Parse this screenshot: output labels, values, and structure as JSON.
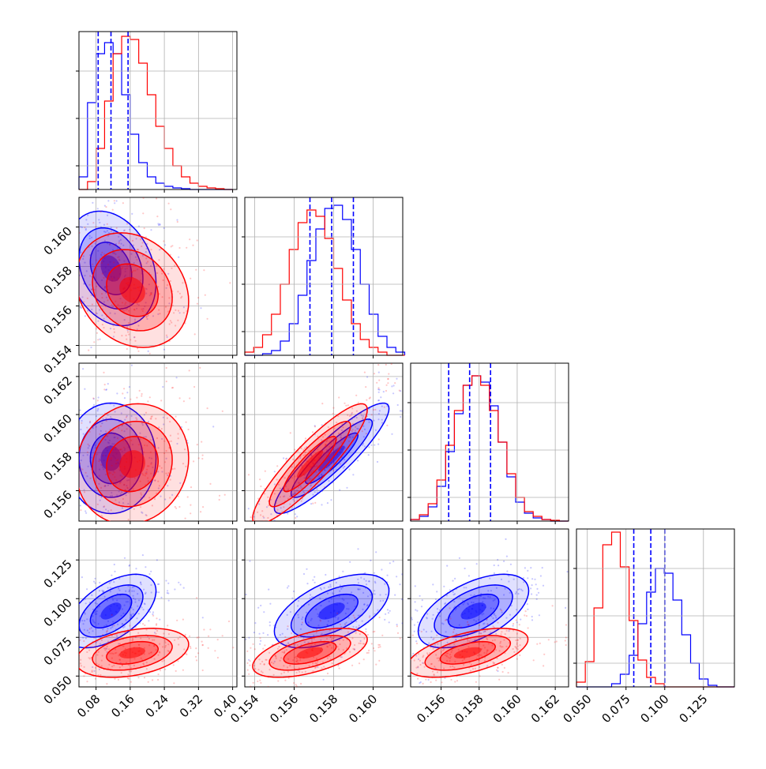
{
  "chart_data": {
    "type": "corner",
    "title": "",
    "parameters": [
      {
        "range": [
          0.04,
          0.41
        ],
        "ticks": [
          "0.08",
          "0.16",
          "0.24",
          "0.32",
          "0.40"
        ],
        "tick_values": [
          0.08,
          0.16,
          0.24,
          0.32,
          0.4
        ]
      },
      {
        "range": [
          0.1535,
          0.1615
        ],
        "ticks": [
          "0.154",
          "0.156",
          "0.158",
          "0.160"
        ],
        "tick_values": [
          0.154,
          0.156,
          0.158,
          0.16
        ]
      },
      {
        "range": [
          0.1544,
          0.1627
        ],
        "ticks": [
          "0.156",
          "0.158",
          "0.160",
          "0.162"
        ],
        "tick_values": [
          0.156,
          0.158,
          0.16,
          0.162
        ]
      },
      {
        "range": [
          0.043,
          0.145
        ],
        "ticks": [
          "0.050",
          "0.075",
          "0.100",
          "0.125"
        ],
        "tick_values": [
          0.05,
          0.075,
          0.1,
          0.125
        ]
      }
    ],
    "series": [
      {
        "color": "#0000ff",
        "means": [
          0.115,
          0.1579,
          0.1577,
          0.092
        ],
        "sds": [
          0.04,
          0.0011,
          0.0011,
          0.009
        ],
        "corr": [
          [
            1,
            -0.25,
            0,
            0.55
          ],
          [
            -0.25,
            1,
            0.9,
            0.55
          ],
          [
            0,
            0.9,
            1,
            0.55
          ],
          [
            0.55,
            0.55,
            0.55,
            1
          ]
        ],
        "quantiles": [
          [
            0.085,
            0.115,
            0.155
          ],
          [
            0.1568,
            0.1579,
            0.159
          ],
          [
            0.1564,
            0.1575,
            0.1586
          ],
          [
            0.08,
            0.091,
            0.1
          ]
        ]
      },
      {
        "color": "#ff0000",
        "means": [
          0.165,
          0.1568,
          0.1574,
          0.065
        ],
        "sds": [
          0.05,
          0.0011,
          0.0012,
          0.006
        ],
        "corr": [
          [
            1,
            -0.2,
            0.1,
            0.35
          ],
          [
            -0.2,
            1,
            0.9,
            0.55
          ],
          [
            0.1,
            0.9,
            1,
            0.55
          ],
          [
            0.35,
            0.55,
            0.55,
            1
          ]
        ]
      }
    ],
    "histograms": [
      {
        "bins": [
          0.04,
          0.06,
          0.08,
          0.1,
          0.12,
          0.14,
          0.16,
          0.18,
          0.2,
          0.22,
          0.24,
          0.26,
          0.28,
          0.3,
          0.32,
          0.34,
          0.36,
          0.38,
          0.4
        ],
        "blue": [
          0.08,
          0.55,
          0.86,
          0.93,
          0.86,
          0.6,
          0.35,
          0.17,
          0.08,
          0.04,
          0.02,
          0.01,
          0.005,
          0,
          0,
          0,
          0,
          0
        ],
        "red": [
          0,
          0.05,
          0.26,
          0.56,
          0.86,
          0.97,
          0.95,
          0.8,
          0.6,
          0.4,
          0.26,
          0.15,
          0.08,
          0.04,
          0.02,
          0.01,
          0.005,
          0
        ]
      },
      {
        "bins": [
          0.1535,
          0.15395,
          0.1544,
          0.15485,
          0.1553,
          0.15575,
          0.1562,
          0.15665,
          0.1571,
          0.15755,
          0.158,
          0.15845,
          0.1589,
          0.15935,
          0.1598,
          0.16025,
          0.1607,
          0.16115,
          0.1616
        ],
        "blue": [
          0,
          0,
          0.01,
          0.03,
          0.09,
          0.2,
          0.38,
          0.6,
          0.8,
          0.93,
          0.95,
          0.86,
          0.67,
          0.45,
          0.26,
          0.12,
          0.05,
          0.02
        ],
        "red": [
          0.02,
          0.05,
          0.13,
          0.26,
          0.45,
          0.67,
          0.84,
          0.92,
          0.88,
          0.74,
          0.55,
          0.35,
          0.2,
          0.1,
          0.05,
          0.02,
          0,
          0
        ]
      },
      {
        "bins": [
          0.1544,
          0.15486,
          0.15532,
          0.15578,
          0.15624,
          0.1567,
          0.15716,
          0.15762,
          0.15808,
          0.15854,
          0.159,
          0.15946,
          0.15992,
          0.16038,
          0.16084,
          0.1613,
          0.16176,
          0.16222,
          0.16268
        ],
        "blue": [
          0.01,
          0.03,
          0.09,
          0.22,
          0.44,
          0.68,
          0.86,
          0.92,
          0.88,
          0.73,
          0.5,
          0.28,
          0.12,
          0.05,
          0.02,
          0.01,
          0,
          0
        ],
        "red": [
          0.01,
          0.04,
          0.11,
          0.26,
          0.48,
          0.7,
          0.86,
          0.92,
          0.86,
          0.7,
          0.5,
          0.3,
          0.15,
          0.06,
          0.03,
          0.01,
          0.005,
          0
        ]
      },
      {
        "bins": [
          0.043,
          0.0487,
          0.0543,
          0.06,
          0.0657,
          0.0713,
          0.077,
          0.0827,
          0.0883,
          0.094,
          0.0997,
          0.1053,
          0.111,
          0.1167,
          0.1223,
          0.128,
          0.1337,
          0.1393,
          0.145
        ],
        "blue": [
          0,
          0,
          0,
          0,
          0.02,
          0.08,
          0.2,
          0.4,
          0.6,
          0.75,
          0.72,
          0.55,
          0.33,
          0.15,
          0.05,
          0.01,
          0,
          0
        ],
        "red": [
          0.03,
          0.16,
          0.5,
          0.9,
          0.98,
          0.76,
          0.42,
          0.17,
          0.06,
          0.02,
          0,
          0,
          0,
          0,
          0,
          0,
          0,
          0
        ]
      }
    ]
  }
}
